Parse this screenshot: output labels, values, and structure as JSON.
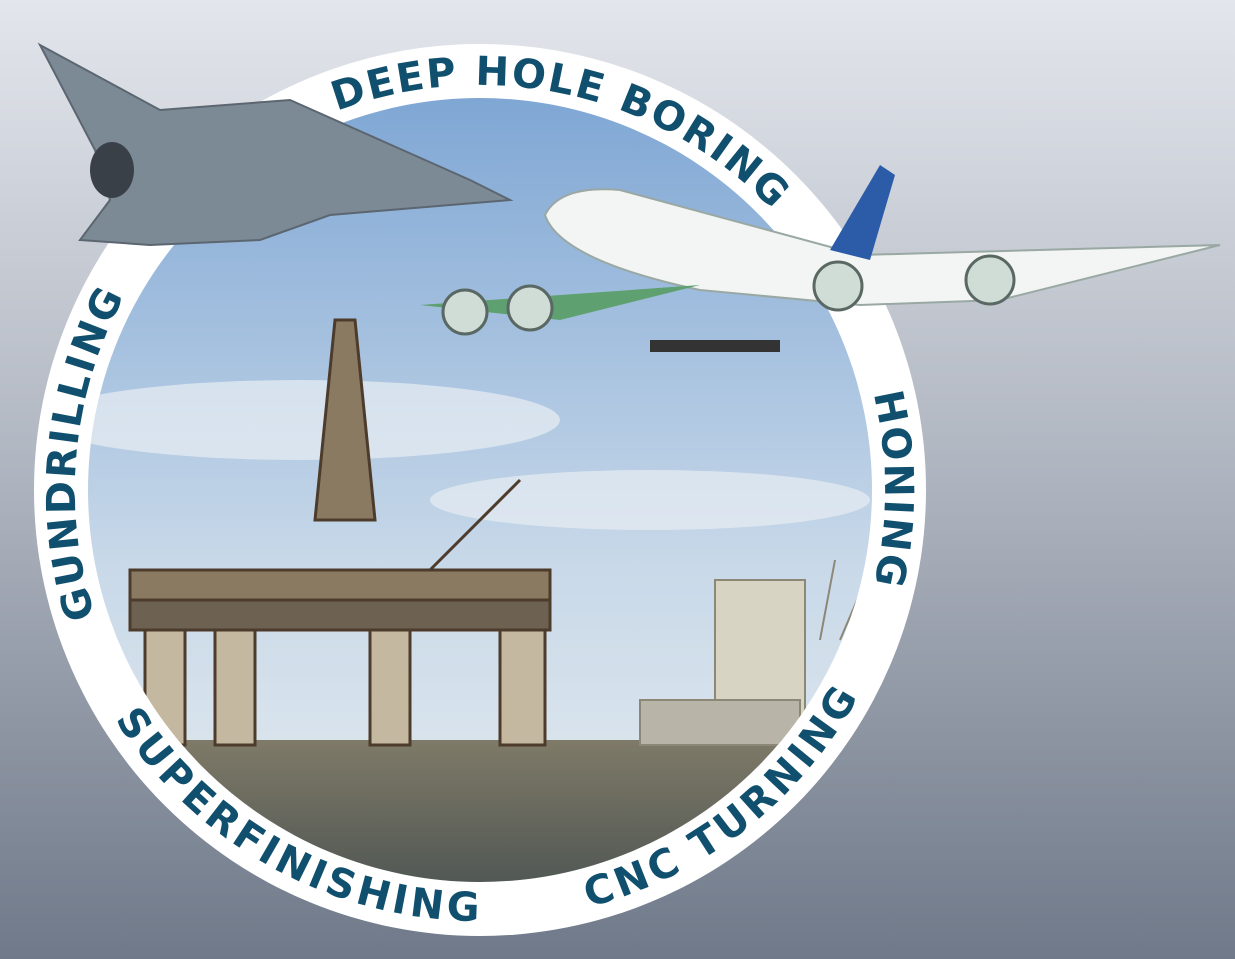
{
  "ring": {
    "labels": [
      "DEEP HOLE BORING",
      "HONING",
      "CNC TURNING",
      "SUPERFINISHING",
      "GUNDRILLING"
    ]
  }
}
